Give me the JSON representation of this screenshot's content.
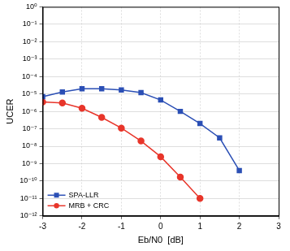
{
  "chart_data": {
    "type": "line",
    "x_label": "Eb/N0  [dB]",
    "y_label": "UCER",
    "log": "y",
    "grid": true,
    "legend": "lower left",
    "xlim": [
      -3,
      3
    ],
    "xticks": [
      -3,
      -2,
      -1,
      0,
      1,
      2,
      3
    ],
    "ylim": [
      1e-12,
      1
    ],
    "yticks": [
      {
        "value": 1e-12,
        "label": "10⁻¹²"
      },
      {
        "value": 1e-11,
        "label": "10⁻¹¹"
      },
      {
        "value": 1e-10,
        "label": "10⁻¹⁰"
      },
      {
        "value": 1e-09,
        "label": "10⁻⁹"
      },
      {
        "value": 1e-08,
        "label": "10⁻⁸"
      },
      {
        "value": 1e-07,
        "label": "10⁻⁷"
      },
      {
        "value": 1e-06,
        "label": "10⁻⁶"
      },
      {
        "value": 1e-05,
        "label": "10⁻⁵"
      },
      {
        "value": 0.0001,
        "label": "10⁻⁴"
      },
      {
        "value": 0.001,
        "label": "10⁻³"
      },
      {
        "value": 0.01,
        "label": "10⁻²"
      },
      {
        "value": 0.1,
        "label": "10⁻¹"
      },
      {
        "value": 1,
        "label": "10⁰"
      }
    ],
    "series": [
      {
        "name": "SPA-LLR",
        "color": "#2b4fb5",
        "marker": "square",
        "line_style": "solid",
        "x": [
          -3,
          -2.5,
          -2,
          -1.5,
          -1,
          -0.5,
          0,
          0.5,
          1,
          1.5,
          2
        ],
        "values": [
          7e-06,
          1.3e-05,
          2e-05,
          2e-05,
          1.7e-05,
          1.2e-05,
          4.5e-06,
          1e-06,
          2e-07,
          3e-08,
          4e-10
        ]
      },
      {
        "name": "MRB + CRC",
        "color": "#e8352a",
        "marker": "circle",
        "line_style": "solid",
        "x": [
          -3,
          -2.5,
          -2,
          -1.5,
          -1,
          -0.5,
          0,
          0.5,
          1
        ],
        "values": [
          3.5e-06,
          3e-06,
          1.5e-06,
          4.5e-07,
          1.1e-07,
          2e-08,
          2.5e-09,
          1.7e-10,
          1e-11
        ]
      }
    ]
  }
}
